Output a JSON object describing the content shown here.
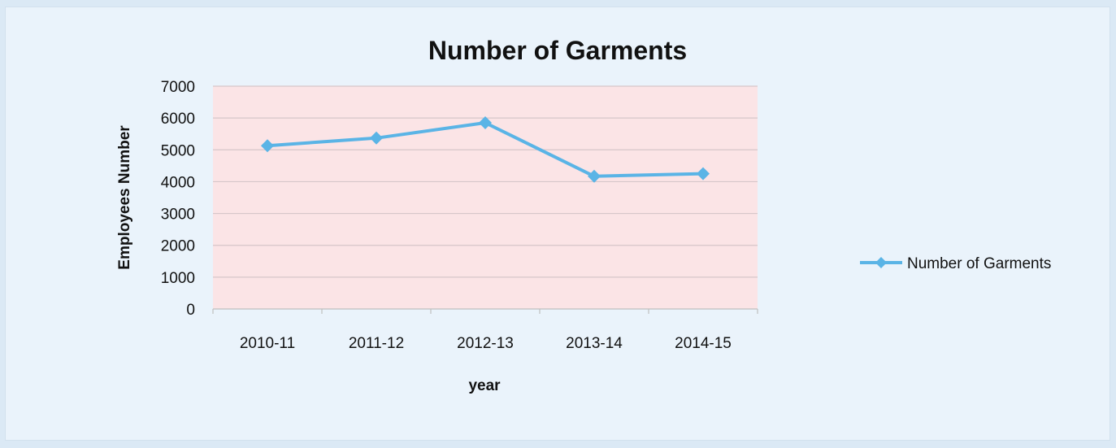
{
  "chart_data": {
    "type": "line",
    "title": "Number of Garments",
    "xlabel": "year",
    "ylabel": "Employees Number",
    "categories": [
      "2010-11",
      "2011-12",
      "2012-13",
      "2013-14",
      "2014-15"
    ],
    "series": [
      {
        "name": "Number of Garments",
        "values": [
          5130,
          5370,
          5850,
          4170,
          4250
        ],
        "color": "#5ab4e6"
      }
    ],
    "ylim": [
      0,
      7000
    ],
    "yticks": [
      "0",
      "1000",
      "2000",
      "3000",
      "4000",
      "5000",
      "6000",
      "7000"
    ],
    "grid": true,
    "plot_background": "#fbe4e6",
    "legend_position": "right"
  }
}
